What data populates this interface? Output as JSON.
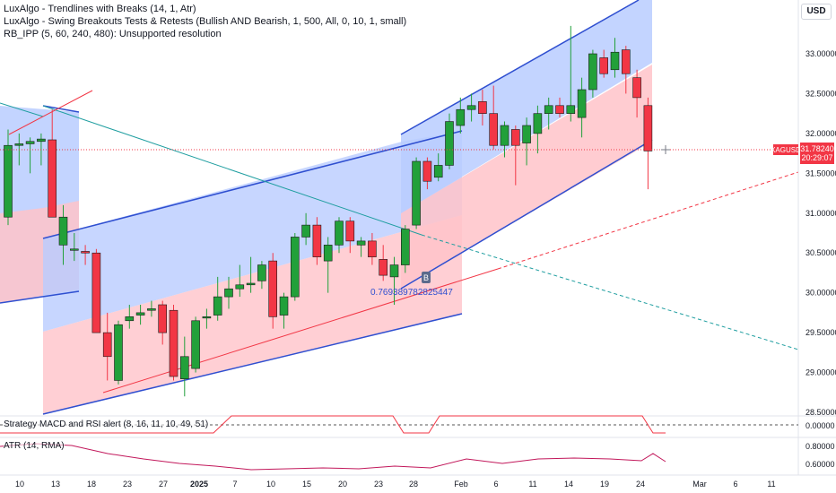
{
  "legend": [
    "LuxAlgo - Trendlines with Breaks (14, 1, Atr)",
    "LuxAlgo - Swing Breakouts Tests & Retests (Bullish AND Bearish, 1, 500, All, 0, 10, 1, small)",
    "RB_IPP (5, 60, 240, 480): Unsupported resolution"
  ],
  "currency_button": "USD",
  "price_axis": [
    "33.00000",
    "32.50000",
    "32.00000",
    "31.50000",
    "31.00000",
    "30.50000",
    "30.00000",
    "29.50000",
    "29.00000",
    "28.50000"
  ],
  "symbol_tag": "XAGUSD",
  "last_price": "31.78240",
  "countdown": "20:29:07",
  "time_axis": [
    {
      "label": "10",
      "bold": false
    },
    {
      "label": "13",
      "bold": false
    },
    {
      "label": "18",
      "bold": false
    },
    {
      "label": "23",
      "bold": false
    },
    {
      "label": "27",
      "bold": false
    },
    {
      "label": "2025",
      "bold": true
    },
    {
      "label": "7",
      "bold": false
    },
    {
      "label": "10",
      "bold": false
    },
    {
      "label": "15",
      "bold": false
    },
    {
      "label": "20",
      "bold": false
    },
    {
      "label": "23",
      "bold": false
    },
    {
      "label": "28",
      "bold": false
    },
    {
      "label": "Feb",
      "bold": false
    },
    {
      "label": "6",
      "bold": false
    },
    {
      "label": "11",
      "bold": false
    },
    {
      "label": "14",
      "bold": false
    },
    {
      "label": "19",
      "bold": false
    },
    {
      "label": "24",
      "bold": false
    },
    {
      "label": "Mar",
      "bold": false
    },
    {
      "label": "6",
      "bold": false
    },
    {
      "label": "11",
      "bold": false
    }
  ],
  "annotation_value": "0.769389782825447",
  "break_label": "B",
  "strategy_label": "Strategy MACD and RSI alert (8, 16, 11, 10, 49, 51)",
  "strategy_axis": "0.00000",
  "atr_label": "ATR (14, RMA)",
  "atr_axis": [
    "0.80000",
    "0.60000"
  ],
  "colors": {
    "bull": "#089981",
    "bull_body": "#22a03a",
    "bear": "#f23645",
    "blue_zone": "#b3c7ff",
    "red_zone": "#ffc0c6",
    "line_blue": "#2f4fd0",
    "trend_teal": "#1f9ea0",
    "price_line": "#f23645"
  },
  "chart_data": {
    "type": "candlestick",
    "symbol": "XAGUSD",
    "ylim": [
      28.5,
      33.5
    ],
    "candles": [
      {
        "o": 30.95,
        "h": 32.05,
        "l": 30.85,
        "c": 31.85
      },
      {
        "o": 31.85,
        "h": 32.0,
        "l": 31.6,
        "c": 31.87
      },
      {
        "o": 31.87,
        "h": 31.95,
        "l": 31.5,
        "c": 31.9
      },
      {
        "o": 31.9,
        "h": 32.0,
        "l": 31.6,
        "c": 31.93
      },
      {
        "o": 31.92,
        "h": 32.3,
        "l": 30.95,
        "c": 30.95
      },
      {
        "o": 30.6,
        "h": 31.1,
        "l": 30.35,
        "c": 30.95
      },
      {
        "o": 30.55,
        "h": 30.75,
        "l": 30.4,
        "c": 30.55
      },
      {
        "o": 30.52,
        "h": 30.6,
        "l": 30.35,
        "c": 30.5
      },
      {
        "o": 30.5,
        "h": 30.55,
        "l": 29.5,
        "c": 29.5
      },
      {
        "o": 29.5,
        "h": 29.75,
        "l": 28.9,
        "c": 29.2
      },
      {
        "o": 28.9,
        "h": 29.65,
        "l": 28.85,
        "c": 29.6
      },
      {
        "o": 29.65,
        "h": 29.85,
        "l": 29.55,
        "c": 29.7
      },
      {
        "o": 29.72,
        "h": 29.85,
        "l": 29.6,
        "c": 29.75
      },
      {
        "o": 29.78,
        "h": 29.9,
        "l": 29.7,
        "c": 29.8
      },
      {
        "o": 29.85,
        "h": 29.9,
        "l": 29.35,
        "c": 29.5
      },
      {
        "o": 29.78,
        "h": 29.85,
        "l": 28.9,
        "c": 28.95
      },
      {
        "o": 28.92,
        "h": 29.45,
        "l": 28.7,
        "c": 29.2
      },
      {
        "o": 29.05,
        "h": 29.7,
        "l": 29.0,
        "c": 29.65
      },
      {
        "o": 29.7,
        "h": 29.8,
        "l": 29.55,
        "c": 29.7
      },
      {
        "o": 29.72,
        "h": 30.2,
        "l": 29.65,
        "c": 29.95
      },
      {
        "o": 29.95,
        "h": 30.2,
        "l": 29.8,
        "c": 30.05
      },
      {
        "o": 30.05,
        "h": 30.35,
        "l": 29.95,
        "c": 30.1
      },
      {
        "o": 30.1,
        "h": 30.45,
        "l": 30.0,
        "c": 30.12
      },
      {
        "o": 30.15,
        "h": 30.4,
        "l": 30.05,
        "c": 30.35
      },
      {
        "o": 30.4,
        "h": 30.5,
        "l": 29.55,
        "c": 29.7
      },
      {
        "o": 29.72,
        "h": 30.0,
        "l": 29.55,
        "c": 29.95
      },
      {
        "o": 29.95,
        "h": 30.75,
        "l": 29.9,
        "c": 30.7
      },
      {
        "o": 30.7,
        "h": 31.0,
        "l": 30.6,
        "c": 30.85
      },
      {
        "o": 30.85,
        "h": 30.95,
        "l": 30.35,
        "c": 30.45
      },
      {
        "o": 30.4,
        "h": 30.7,
        "l": 30.0,
        "c": 30.6
      },
      {
        "o": 30.6,
        "h": 30.95,
        "l": 30.5,
        "c": 30.9
      },
      {
        "o": 30.9,
        "h": 30.95,
        "l": 30.5,
        "c": 30.65
      },
      {
        "o": 30.6,
        "h": 30.7,
        "l": 30.45,
        "c": 30.65
      },
      {
        "o": 30.65,
        "h": 30.75,
        "l": 30.35,
        "c": 30.45
      },
      {
        "o": 30.42,
        "h": 30.6,
        "l": 30.15,
        "c": 30.22
      },
      {
        "o": 30.2,
        "h": 30.45,
        "l": 29.85,
        "c": 30.35
      },
      {
        "o": 30.35,
        "h": 30.85,
        "l": 30.25,
        "c": 30.8
      },
      {
        "o": 30.85,
        "h": 31.7,
        "l": 30.8,
        "c": 31.65
      },
      {
        "o": 31.65,
        "h": 31.7,
        "l": 31.3,
        "c": 31.4
      },
      {
        "o": 31.45,
        "h": 31.75,
        "l": 31.4,
        "c": 31.6
      },
      {
        "o": 31.6,
        "h": 32.25,
        "l": 31.55,
        "c": 32.15
      },
      {
        "o": 32.1,
        "h": 32.45,
        "l": 32.0,
        "c": 32.3
      },
      {
        "o": 32.3,
        "h": 32.5,
        "l": 32.15,
        "c": 32.35
      },
      {
        "o": 32.4,
        "h": 32.55,
        "l": 32.1,
        "c": 32.25
      },
      {
        "o": 32.25,
        "h": 32.6,
        "l": 31.8,
        "c": 31.85
      },
      {
        "o": 31.85,
        "h": 32.15,
        "l": 31.7,
        "c": 32.1
      },
      {
        "o": 32.05,
        "h": 32.1,
        "l": 31.35,
        "c": 31.85
      },
      {
        "o": 31.88,
        "h": 32.2,
        "l": 31.6,
        "c": 32.1
      },
      {
        "o": 32.0,
        "h": 32.35,
        "l": 31.75,
        "c": 32.25
      },
      {
        "o": 32.25,
        "h": 32.45,
        "l": 32.05,
        "c": 32.35
      },
      {
        "o": 32.35,
        "h": 32.45,
        "l": 32.2,
        "c": 32.25
      },
      {
        "o": 32.25,
        "h": 33.35,
        "l": 32.15,
        "c": 32.35
      },
      {
        "o": 32.2,
        "h": 32.7,
        "l": 31.95,
        "c": 32.55
      },
      {
        "o": 32.55,
        "h": 33.05,
        "l": 32.45,
        "c": 33.0
      },
      {
        "o": 32.95,
        "h": 33.05,
        "l": 32.7,
        "c": 32.75
      },
      {
        "o": 32.8,
        "h": 33.2,
        "l": 32.7,
        "c": 33.02
      },
      {
        "o": 33.05,
        "h": 33.1,
        "l": 32.5,
        "c": 32.75
      },
      {
        "o": 32.7,
        "h": 32.8,
        "l": 32.2,
        "c": 32.45
      },
      {
        "o": 32.35,
        "h": 32.45,
        "l": 31.3,
        "c": 31.78
      }
    ]
  }
}
